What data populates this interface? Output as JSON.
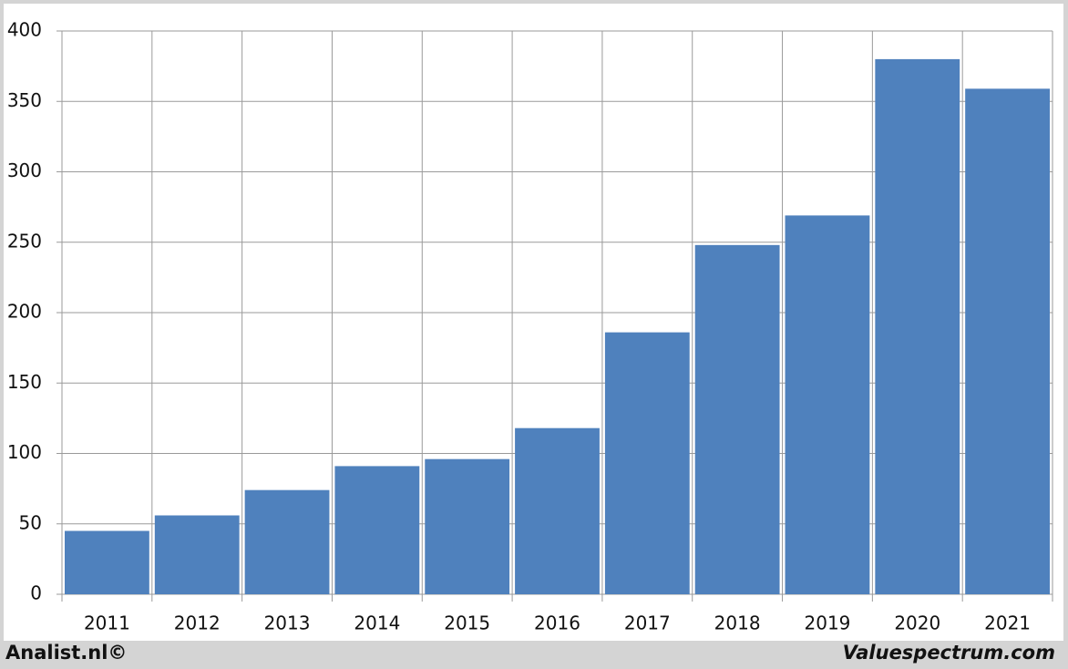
{
  "chart_data": {
    "type": "bar",
    "categories": [
      "2011",
      "2012",
      "2013",
      "2014",
      "2015",
      "2016",
      "2017",
      "2018",
      "2019",
      "2020",
      "2021"
    ],
    "values": [
      45,
      56,
      74,
      91,
      96,
      118,
      186,
      248,
      269,
      380,
      359
    ],
    "color": "#4f81bd",
    "ylim": [
      0,
      400
    ],
    "yticks": [
      0,
      50,
      100,
      150,
      200,
      250,
      300,
      350,
      400
    ],
    "grid": true,
    "annotations": [
      "Analist.nl©",
      "Valuespectrum.com"
    ]
  }
}
